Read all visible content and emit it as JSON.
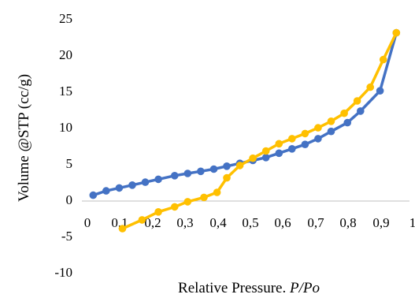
{
  "chart_data": {
    "type": "line",
    "xlabel_text": "Relative Pressure. ",
    "xlabel_italic": "P/Po",
    "ylabel": "Volume @STP (cc/g)",
    "xlim": [
      0,
      1
    ],
    "ylim": [
      -10,
      25
    ],
    "x_ticks": [
      "0",
      "0,1",
      "0,2",
      "0,3",
      "0,4",
      "0,5",
      "0,6",
      "0,7",
      "0,8",
      "0,9",
      "1"
    ],
    "y_ticks": [
      "-10",
      "-5",
      "0",
      "5",
      "10",
      "15",
      "20",
      "25"
    ],
    "grid": false,
    "legend": "none",
    "series": [
      {
        "color": "#4472C4",
        "points": [
          [
            0.02,
            0.8
          ],
          [
            0.06,
            1.4
          ],
          [
            0.1,
            1.8
          ],
          [
            0.14,
            2.2
          ],
          [
            0.18,
            2.6
          ],
          [
            0.22,
            3.0
          ],
          [
            0.27,
            3.5
          ],
          [
            0.31,
            3.8
          ],
          [
            0.35,
            4.1
          ],
          [
            0.39,
            4.4
          ],
          [
            0.43,
            4.8
          ],
          [
            0.47,
            5.2
          ],
          [
            0.51,
            5.6
          ],
          [
            0.55,
            6.0
          ],
          [
            0.59,
            6.6
          ],
          [
            0.63,
            7.2
          ],
          [
            0.67,
            7.8
          ],
          [
            0.71,
            8.6
          ],
          [
            0.75,
            9.6
          ],
          [
            0.8,
            10.8
          ],
          [
            0.84,
            12.4
          ],
          [
            0.9,
            15.2
          ],
          [
            0.95,
            23.2
          ]
        ]
      },
      {
        "color": "#FFC000",
        "points": [
          [
            0.11,
            -3.8
          ],
          [
            0.17,
            -2.6
          ],
          [
            0.22,
            -1.5
          ],
          [
            0.27,
            -0.8
          ],
          [
            0.31,
            -0.1
          ],
          [
            0.36,
            0.5
          ],
          [
            0.4,
            1.2
          ],
          [
            0.43,
            3.2
          ],
          [
            0.47,
            4.9
          ],
          [
            0.51,
            5.9
          ],
          [
            0.55,
            6.9
          ],
          [
            0.59,
            7.9
          ],
          [
            0.63,
            8.6
          ],
          [
            0.67,
            9.3
          ],
          [
            0.71,
            10.1
          ],
          [
            0.75,
            11.0
          ],
          [
            0.79,
            12.1
          ],
          [
            0.83,
            13.8
          ],
          [
            0.87,
            15.7
          ],
          [
            0.91,
            19.5
          ],
          [
            0.95,
            23.2
          ]
        ]
      }
    ]
  }
}
